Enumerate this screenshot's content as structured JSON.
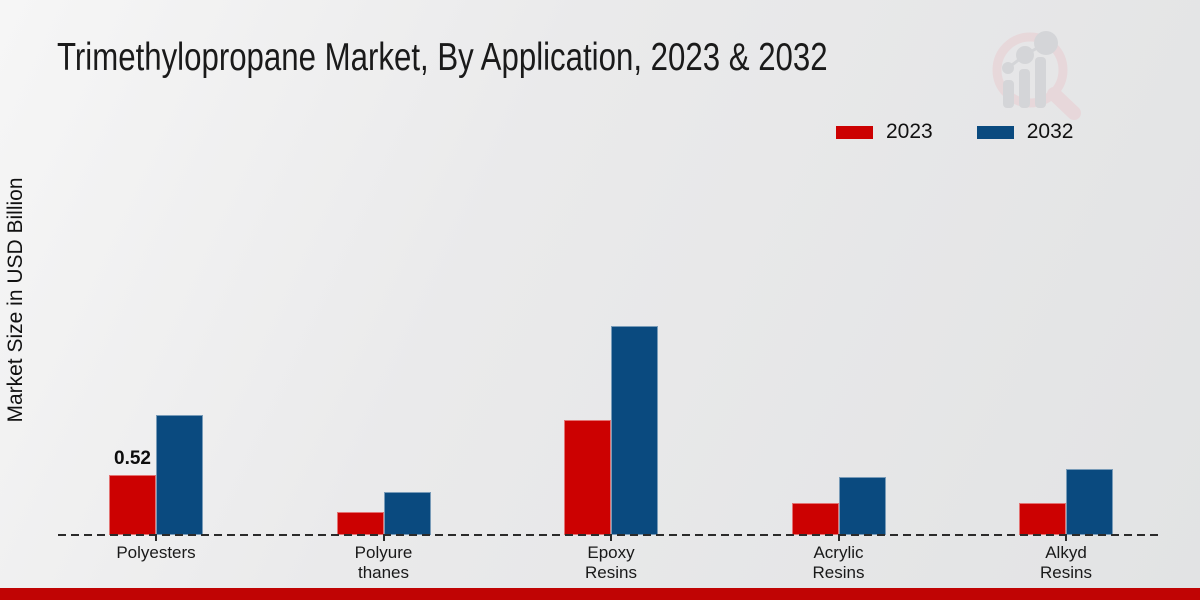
{
  "page_title": "Trimethylopropane Market, By Application, 2023 & 2032",
  "colors": {
    "series_2023": "#cc0101",
    "series_2032": "#0a4a7f",
    "footer_bar": "#c00404",
    "axis": "#2b2b2b"
  },
  "chart_data": {
    "type": "bar",
    "title": "Trimethylopropane Market, By Application, 2023 & 2032",
    "xlabel": "",
    "ylabel": "Market Size in USD Billion",
    "unit": "USD Billion",
    "categories": [
      "Polyesters",
      "Polyure\nthanes",
      "Epoxy\nResins",
      "Acrylic\nResins",
      "Alkyd\nResins"
    ],
    "series": [
      {
        "name": "2023",
        "color": "#cc0101",
        "values": [
          0.52,
          0.2,
          1.0,
          0.28,
          0.28
        ]
      },
      {
        "name": "2032",
        "color": "#0a4a7f",
        "values": [
          1.04,
          0.37,
          1.82,
          0.5,
          0.57
        ]
      }
    ],
    "annotations": [
      {
        "category_index": 0,
        "series_index": 0,
        "text": "0.52"
      }
    ],
    "legend_position": "top-right",
    "grid": false,
    "baseline_style": "dashed",
    "ylim": [
      0,
      2.0
    ]
  }
}
